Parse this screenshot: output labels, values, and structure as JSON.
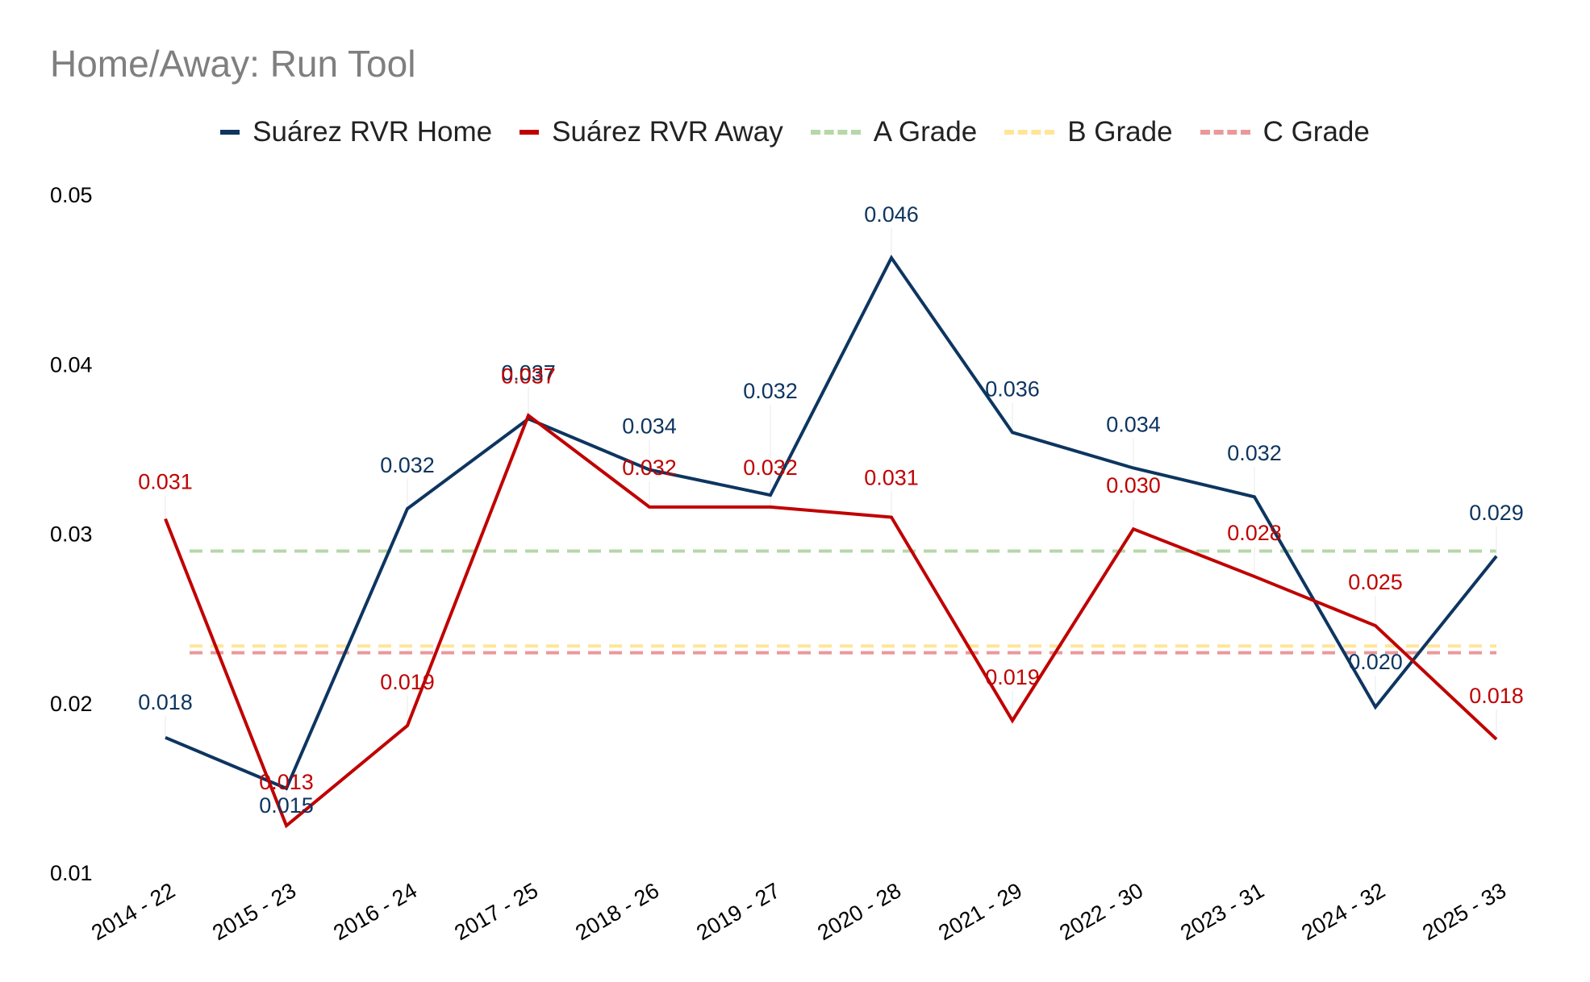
{
  "chart_data": {
    "type": "line",
    "title": "Home/Away: Run Tool",
    "xlabel": "",
    "ylabel": "",
    "categories": [
      "2014 - 22",
      "2015 - 23",
      "2016 - 24",
      "2017 - 25",
      "2018 - 26",
      "2019 - 27",
      "2020 - 28",
      "2021 - 29",
      "2022 - 30",
      "2023 - 31",
      "2024 - 32",
      "2025 - 33"
    ],
    "ylim": [
      0.01,
      0.05
    ],
    "yticks": [
      "0.01",
      "0.02",
      "0.03",
      "0.04",
      "0.05"
    ],
    "grid": false,
    "legend_position": "top",
    "series": [
      {
        "name": "Suárez RVR Home",
        "color": "#0d3560",
        "values": [
          0.018,
          0.015,
          0.0315,
          0.0368,
          0.0338,
          0.0323,
          0.0463,
          0.036,
          0.0339,
          0.0322,
          0.0198,
          0.0287
        ],
        "labels": [
          "0.018",
          "0.015",
          "0.032",
          "0.037",
          "0.034",
          "0.032",
          "0.046",
          "0.036",
          "0.034",
          "0.032",
          "0.020",
          "0.029"
        ]
      },
      {
        "name": "Suárez RVR Away",
        "color": "#c00000",
        "values": [
          0.0309,
          0.0128,
          0.0187,
          0.037,
          0.0316,
          0.0316,
          0.031,
          0.019,
          0.0303,
          0.0275,
          0.0246,
          0.0179
        ],
        "labels": [
          "0.031",
          "0.013",
          "0.019",
          "0.037",
          "0.032",
          "0.032",
          "0.031",
          "0.019",
          "0.030",
          "0.028",
          "0.025",
          "0.018"
        ]
      }
    ],
    "reference_lines": [
      {
        "name": "A Grade",
        "value": 0.029,
        "color": "#b6d7a8"
      },
      {
        "name": "B Grade",
        "value": 0.0234,
        "color": "#ffe599"
      },
      {
        "name": "C Grade",
        "value": 0.023,
        "color": "#ea9999"
      }
    ]
  }
}
